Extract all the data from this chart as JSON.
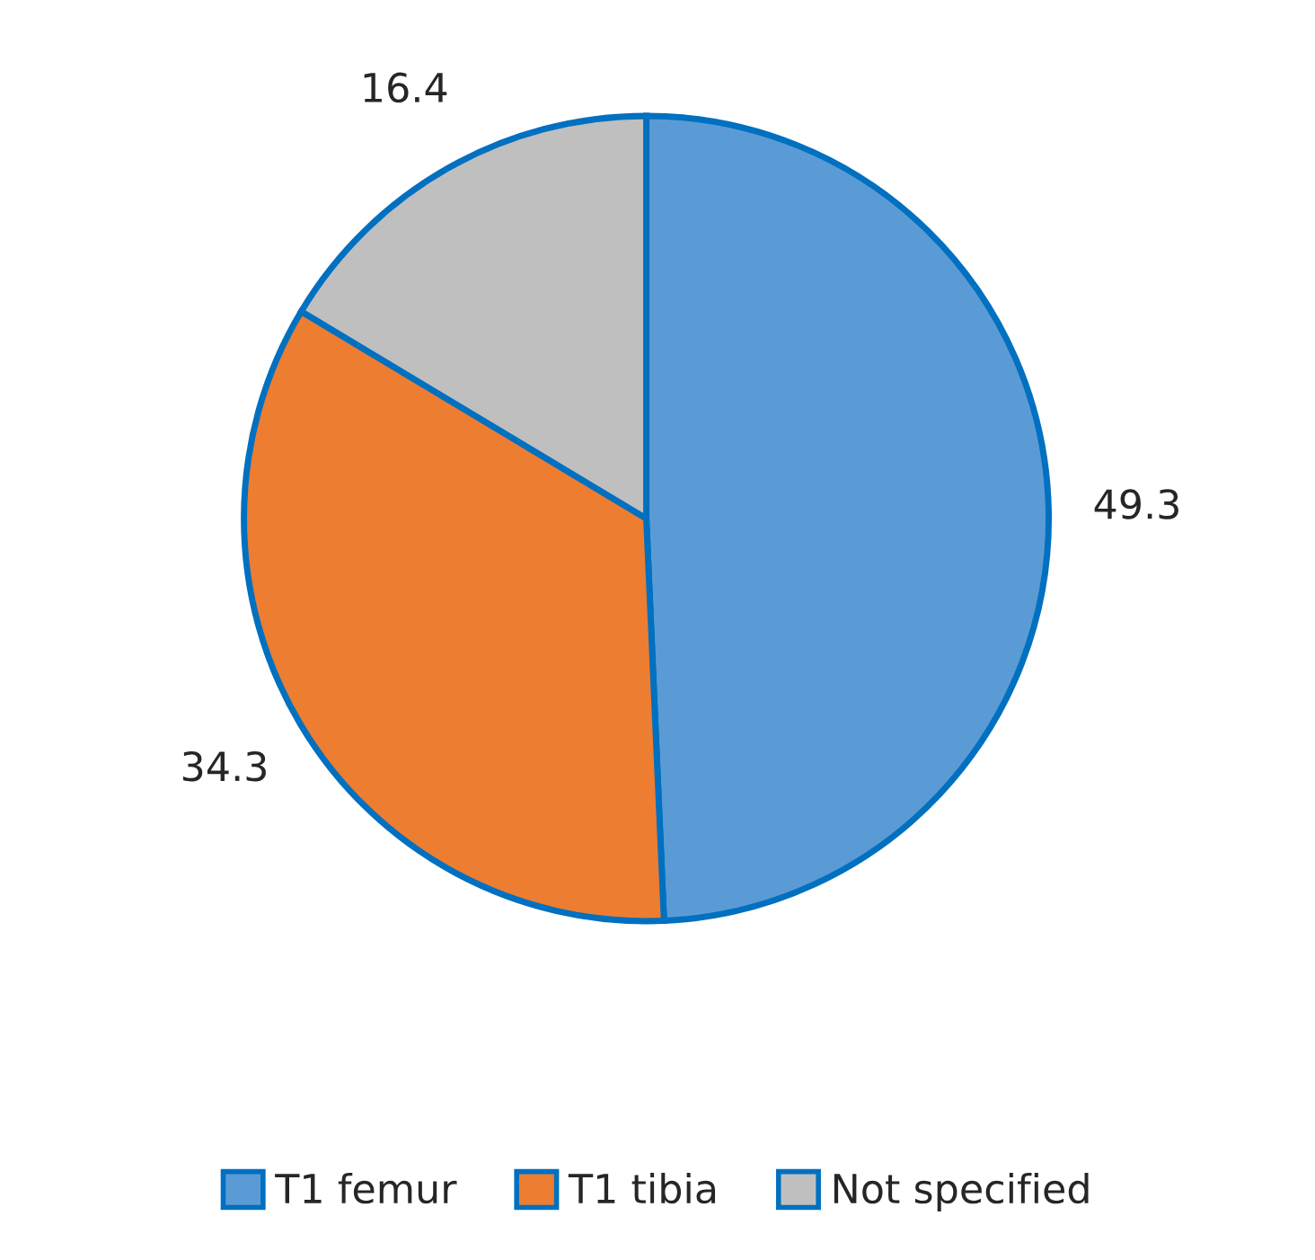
{
  "chart_data": {
    "type": "pie",
    "categories": [
      "T1 femur",
      "T1 tibia",
      "Not specified"
    ],
    "values": [
      49.3,
      34.3,
      16.4
    ],
    "colors": [
      "#5b9bd5",
      "#ed7d31",
      "#bfbfbf"
    ],
    "data_labels": true,
    "legend": "bottom"
  }
}
